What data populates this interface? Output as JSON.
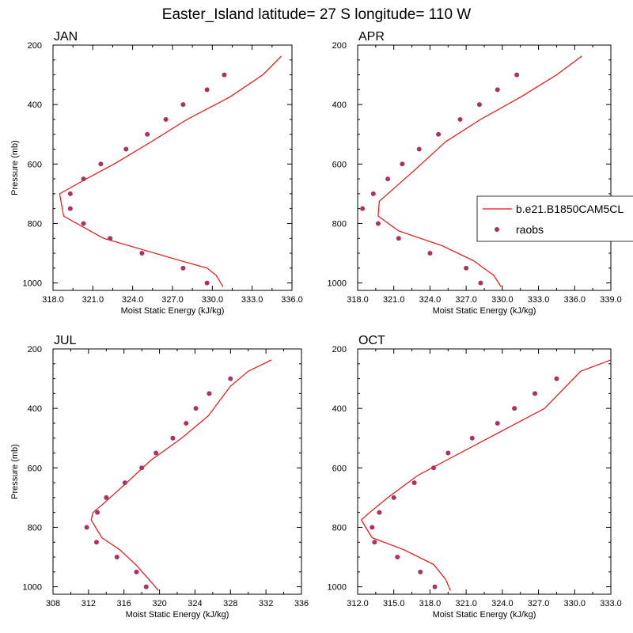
{
  "figure_title": "Easter_Island  latitude= 27 S longitude= 110 W",
  "legend": {
    "model_label": "b.e21.B1850CAM5CL",
    "obs_label": "raobs"
  },
  "colors": {
    "model": "#ee1111",
    "obs": "#b03060"
  },
  "chart_data": [
    {
      "type": "line",
      "title": "JAN",
      "xlabel": "Moist Static Energy (kJ/kg)",
      "ylabel": "Pressure (mb)",
      "xlim": [
        318,
        336
      ],
      "xticks": [
        "318.0",
        "321.0",
        "324.0",
        "327.0",
        "330.0",
        "333.0",
        "336.0"
      ],
      "ylim": [
        200,
        1025
      ],
      "yticks": [
        "200",
        "400",
        "600",
        "800",
        "1000"
      ],
      "y_inverted": true,
      "series": [
        {
          "name": "b.e21.B1850CAM5CL",
          "kind": "line",
          "x": [
            330.8,
            330.3,
            329.6,
            327.6,
            321.8,
            318.8,
            318.5,
            320.5,
            322.6,
            325.4,
            328.1,
            331.3,
            333.8,
            335.2
          ],
          "y": [
            1013,
            975,
            950,
            925,
            850,
            775,
            700,
            650,
            600,
            525,
            450,
            375,
            300,
            237
          ]
        },
        {
          "name": "raobs",
          "kind": "scatter",
          "x": [
            329.6,
            327.8,
            324.7,
            322.3,
            320.3,
            319.3,
            319.3,
            320.3,
            321.6,
            323.5,
            325.1,
            326.5,
            327.8,
            329.6,
            330.9
          ],
          "y": [
            1000,
            950,
            900,
            850,
            800,
            750,
            700,
            650,
            600,
            550,
            500,
            450,
            400,
            350,
            300
          ]
        }
      ]
    },
    {
      "type": "line",
      "title": "APR",
      "xlabel": "Moist Static Energy (kJ/kg)",
      "ylabel": "",
      "xlim": [
        318,
        339
      ],
      "xticks": [
        "318.0",
        "321.0",
        "324.0",
        "327.0",
        "330.0",
        "333.0",
        "336.0",
        "339.0"
      ],
      "ylim": [
        200,
        1025
      ],
      "yticks": [
        "200",
        "400",
        "600",
        "800",
        "1000"
      ],
      "y_inverted": true,
      "series": [
        {
          "name": "b.e21.B1850CAM5CL",
          "kind": "line",
          "x": [
            329.9,
            329.3,
            327.6,
            325.0,
            321.4,
            319.7,
            319.8,
            320.5,
            322.6,
            325.3,
            328.2,
            331.5,
            334.5,
            336.6
          ],
          "y": [
            1013,
            975,
            925,
            875,
            825,
            775,
            725,
            700,
            625,
            525,
            450,
            375,
            300,
            237
          ]
        },
        {
          "name": "raobs",
          "kind": "scatter",
          "x": [
            328.2,
            327.0,
            324.0,
            321.4,
            319.7,
            318.4,
            319.3,
            320.5,
            321.7,
            323.1,
            324.7,
            326.5,
            328.1,
            329.6,
            331.2
          ],
          "y": [
            1000,
            950,
            900,
            850,
            800,
            750,
            700,
            650,
            600,
            550,
            500,
            450,
            400,
            350,
            300
          ]
        }
      ]
    },
    {
      "type": "line",
      "title": "JUL",
      "xlabel": "Moist Static Energy (kJ/kg)",
      "ylabel": "Pressure (mb)",
      "xlim": [
        308,
        336
      ],
      "xticks": [
        "308",
        "312",
        "316",
        "320",
        "324",
        "328",
        "332",
        "336"
      ],
      "ylim": [
        200,
        1025
      ],
      "yticks": [
        "200",
        "400",
        "600",
        "800",
        "1000"
      ],
      "y_inverted": true,
      "series": [
        {
          "name": "b.e21.B1850CAM5CL",
          "kind": "line",
          "x": [
            319.9,
            318.8,
            317.3,
            315.5,
            313.5,
            312.3,
            312.5,
            313.5,
            316.3,
            319.0,
            322.5,
            325.5,
            328.0,
            330.0,
            332.6
          ],
          "y": [
            1013,
            975,
            925,
            875,
            835,
            775,
            750,
            725,
            650,
            575,
            500,
            425,
            325,
            275,
            237
          ]
        },
        {
          "name": "raobs",
          "kind": "scatter",
          "x": [
            318.5,
            317.4,
            315.2,
            312.9,
            311.8,
            313.0,
            314.0,
            316.1,
            318.0,
            319.6,
            321.5,
            323.0,
            324.1,
            325.6,
            328.0
          ],
          "y": [
            1000,
            950,
            900,
            850,
            800,
            750,
            700,
            650,
            600,
            550,
            500,
            450,
            400,
            350,
            300
          ]
        }
      ]
    },
    {
      "type": "line",
      "title": "OCT",
      "xlabel": "Moist Static Energy (kJ/kg)",
      "ylabel": "",
      "xlim": [
        312,
        333
      ],
      "xticks": [
        "312.0",
        "315.0",
        "318.0",
        "321.0",
        "324.0",
        "327.0",
        "330.0",
        "333.0"
      ],
      "ylim": [
        200,
        1025
      ],
      "yticks": [
        "200",
        "400",
        "600",
        "800",
        "1000"
      ],
      "y_inverted": true,
      "series": [
        {
          "name": "b.e21.B1850CAM5CL",
          "kind": "line",
          "x": [
            319.7,
            319.3,
            318.3,
            315.8,
            313.2,
            312.3,
            313.0,
            314.5,
            317.0,
            320.5,
            324.0,
            327.5,
            330.5,
            333.0
          ],
          "y": [
            1013,
            975,
            925,
            875,
            835,
            775,
            750,
            700,
            625,
            550,
            475,
            400,
            275,
            237
          ]
        },
        {
          "name": "raobs",
          "kind": "scatter",
          "x": [
            318.4,
            317.2,
            315.3,
            313.4,
            313.2,
            313.8,
            315.0,
            316.7,
            318.3,
            319.5,
            321.5,
            323.6,
            325.0,
            326.7,
            328.5
          ],
          "y": [
            1000,
            950,
            900,
            850,
            800,
            750,
            700,
            650,
            600,
            550,
            500,
            450,
            400,
            350,
            300
          ]
        }
      ]
    }
  ]
}
